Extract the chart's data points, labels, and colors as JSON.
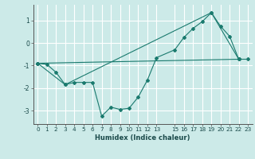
{
  "xlabel": "Humidex (Indice chaleur)",
  "bg_color": "#cceae8",
  "grid_color": "#ffffff",
  "line_color": "#1a7a6e",
  "xlim": [
    -0.5,
    23.5
  ],
  "ylim": [
    -3.6,
    1.7
  ],
  "yticks": [
    -3,
    -2,
    -1,
    0,
    1
  ],
  "xticks": [
    0,
    1,
    2,
    3,
    4,
    5,
    6,
    7,
    8,
    9,
    10,
    11,
    12,
    13,
    15,
    16,
    17,
    18,
    19,
    20,
    21,
    22,
    23
  ],
  "line1_x": [
    0,
    1,
    2,
    3,
    4,
    5,
    6,
    7,
    8,
    9,
    10,
    11,
    12,
    13,
    15,
    16,
    17,
    18,
    19,
    20,
    21,
    22,
    23
  ],
  "line1_y": [
    -0.9,
    -0.95,
    -1.3,
    -1.85,
    -1.75,
    -1.75,
    -1.75,
    -3.25,
    -2.85,
    -2.95,
    -2.9,
    -2.4,
    -1.65,
    -0.65,
    -0.3,
    0.25,
    0.65,
    0.95,
    1.35,
    0.75,
    0.3,
    -0.72,
    -0.72
  ],
  "line2_x": [
    0,
    3,
    19,
    22
  ],
  "line2_y": [
    -0.9,
    -1.85,
    1.35,
    -0.72
  ],
  "line3_x": [
    0,
    22
  ],
  "line3_y": [
    -0.9,
    -0.72
  ]
}
